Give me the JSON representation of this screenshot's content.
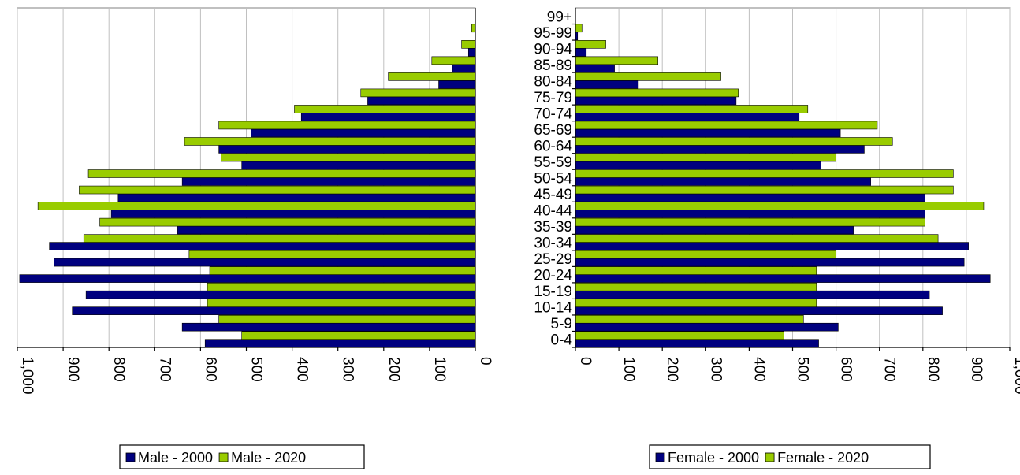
{
  "chart_data": [
    {
      "type": "bar",
      "orientation": "horizontal",
      "direction": "right-to-left",
      "title": "",
      "xlabel": "",
      "ylabel": "",
      "categories": [
        "0-4",
        "5-9",
        "10-14",
        "15-19",
        "20-24",
        "25-29",
        "30-34",
        "35-39",
        "40-44",
        "45-49",
        "50-54",
        "55-59",
        "60-64",
        "65-69",
        "70-74",
        "75-79",
        "80-84",
        "85-89",
        "90-94",
        "95-99",
        "99+"
      ],
      "xlim": [
        0,
        1000
      ],
      "x_ticks": [
        "0",
        "100",
        "200",
        "300",
        "400",
        "500",
        "600",
        "700",
        "800",
        "900",
        "1,000"
      ],
      "grid": true,
      "legend_position": "bottom",
      "series": [
        {
          "name": "Male - 2000",
          "color": "#00007f",
          "values": [
            590,
            640,
            880,
            850,
            995,
            920,
            930,
            650,
            795,
            780,
            640,
            510,
            560,
            490,
            380,
            235,
            80,
            50,
            15,
            0,
            0
          ]
        },
        {
          "name": "Male - 2020",
          "color": "#99cc00",
          "values": [
            510,
            560,
            585,
            585,
            580,
            625,
            855,
            820,
            955,
            865,
            845,
            555,
            635,
            560,
            395,
            250,
            190,
            95,
            30,
            8,
            0
          ]
        }
      ]
    },
    {
      "type": "bar",
      "orientation": "horizontal",
      "direction": "left-to-right",
      "title": "",
      "xlabel": "",
      "ylabel": "",
      "categories": [
        "0-4",
        "5-9",
        "10-14",
        "15-19",
        "20-24",
        "25-29",
        "30-34",
        "35-39",
        "40-44",
        "45-49",
        "50-54",
        "55-59",
        "60-64",
        "65-69",
        "70-74",
        "75-79",
        "80-84",
        "85-89",
        "90-94",
        "95-99",
        "99+"
      ],
      "xlim": [
        0,
        1000
      ],
      "x_ticks": [
        "0",
        "100",
        "200",
        "300",
        "400",
        "500",
        "600",
        "700",
        "800",
        "900",
        "1,000"
      ],
      "grid": true,
      "legend_position": "bottom",
      "series": [
        {
          "name": "Female - 2000",
          "color": "#00007f",
          "values": [
            560,
            605,
            845,
            815,
            955,
            895,
            905,
            640,
            805,
            805,
            680,
            565,
            665,
            610,
            515,
            370,
            145,
            90,
            25,
            5,
            0
          ]
        },
        {
          "name": "Female - 2020",
          "color": "#99cc00",
          "values": [
            480,
            525,
            555,
            555,
            555,
            600,
            835,
            805,
            940,
            870,
            870,
            600,
            730,
            695,
            535,
            375,
            335,
            190,
            70,
            15,
            0
          ]
        }
      ]
    }
  ]
}
